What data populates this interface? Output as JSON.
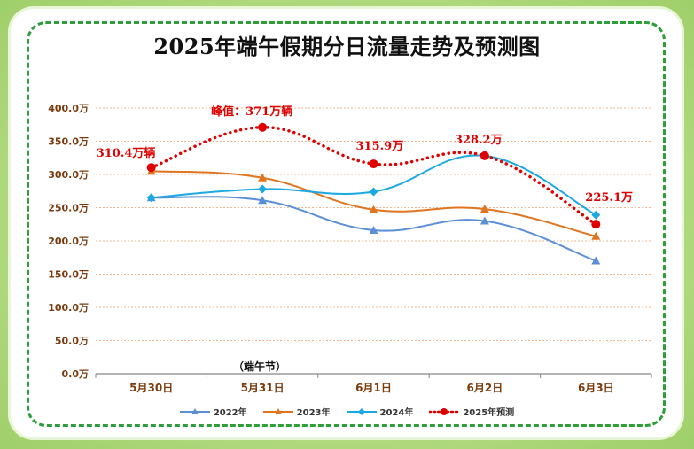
{
  "chart_data": {
    "type": "line",
    "title": "2025年端午假期分日流量走势及预测图",
    "categories": [
      "5月30日",
      "5月31日",
      "6月1日",
      "6月2日",
      "6月3日"
    ],
    "category_note": "（端午节）",
    "y_ticks": [
      "0.0万",
      "50.0万",
      "100.0万",
      "150.0万",
      "200.0万",
      "250.0万",
      "300.0万",
      "350.0万",
      "400.0万"
    ],
    "ylim": [
      0,
      400
    ],
    "series": [
      {
        "name": "2022年",
        "color": "#5b8fd6",
        "style": "solid",
        "marker": "triangle",
        "values": [
          265,
          261,
          216,
          230,
          170
        ]
      },
      {
        "name": "2023年",
        "color": "#e0741f",
        "style": "solid",
        "marker": "triangle",
        "values": [
          305,
          295,
          247,
          248,
          207
        ]
      },
      {
        "name": "2024年",
        "color": "#1aa9e0",
        "style": "solid",
        "marker": "diamond",
        "values": [
          265,
          278,
          274,
          328,
          239
        ]
      },
      {
        "name": "2025年预测",
        "color": "#e00000",
        "style": "dotted",
        "marker": "circle",
        "values": [
          310.4,
          371,
          315.9,
          328.2,
          225.1
        ]
      }
    ],
    "annotations": [
      "310.4万辆",
      "峰值：371万辆",
      "315.9万",
      "328.2万",
      "225.1万"
    ]
  }
}
